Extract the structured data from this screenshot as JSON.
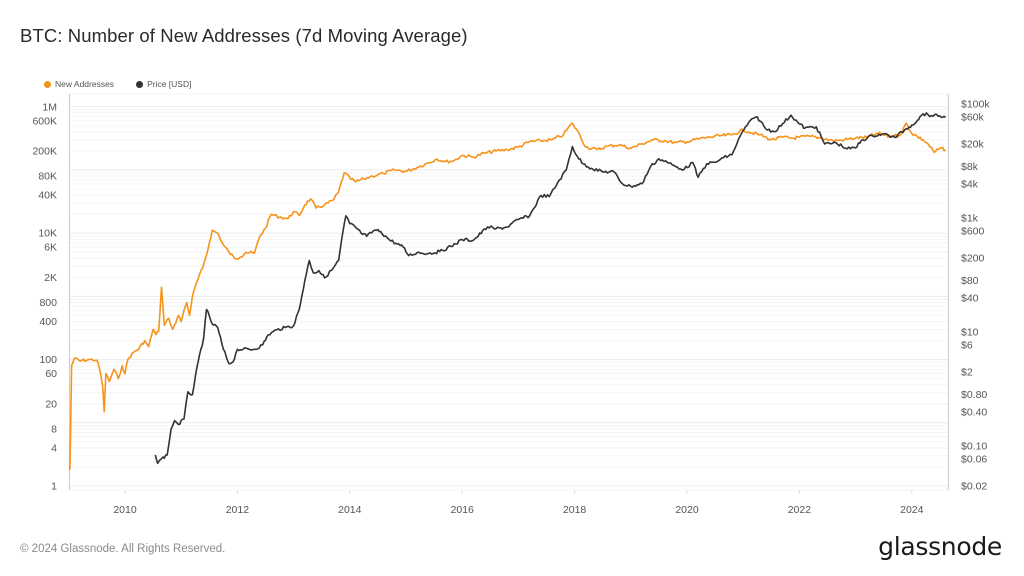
{
  "title": "BTC: Number of New Addresses (7d Moving Average)",
  "legend": [
    {
      "label": "New Addresses",
      "color": "#f7931a"
    },
    {
      "label": "Price [USD]",
      "color": "#333333"
    }
  ],
  "footer": {
    "copyright": "© 2024 Glassnode. All Rights Reserved.",
    "brand": "glassnode"
  },
  "chart_data": {
    "type": "line",
    "title": "BTC: Number of New Addresses (7d Moving Average)",
    "xlabel": "",
    "ylabel_left": "New Addresses",
    "ylabel_right": "Price [USD]",
    "x_range": [
      2009.0,
      2024.65
    ],
    "x_ticks": [
      "2010",
      "2012",
      "2014",
      "2016",
      "2018",
      "2020",
      "2022",
      "2024"
    ],
    "y_left_scale": "log",
    "y_left_range": [
      0.9,
      1600000
    ],
    "y_left_ticks": [
      {
        "value": 1000000,
        "label": "1M"
      },
      {
        "value": 600000,
        "label": "600K"
      },
      {
        "value": 200000,
        "label": "200K"
      },
      {
        "value": 80000,
        "label": "80K"
      },
      {
        "value": 40000,
        "label": "40K"
      },
      {
        "value": 10000,
        "label": "10K"
      },
      {
        "value": 6000,
        "label": "6K"
      },
      {
        "value": 2000,
        "label": "2K"
      },
      {
        "value": 800,
        "label": "800"
      },
      {
        "value": 400,
        "label": "400"
      },
      {
        "value": 100,
        "label": "100"
      },
      {
        "value": 60,
        "label": "60"
      },
      {
        "value": 20,
        "label": "20"
      },
      {
        "value": 8,
        "label": "8"
      },
      {
        "value": 4,
        "label": "4"
      },
      {
        "value": 1,
        "label": "1"
      }
    ],
    "y_right_scale": "log",
    "y_right_range": [
      0.018,
      130000
    ],
    "y_right_ticks": [
      {
        "value": 100000,
        "label": "$100k"
      },
      {
        "value": 60000,
        "label": "$60k"
      },
      {
        "value": 20000,
        "label": "$20k"
      },
      {
        "value": 8000,
        "label": "$8k"
      },
      {
        "value": 4000,
        "label": "$4k"
      },
      {
        "value": 1000,
        "label": "$1k"
      },
      {
        "value": 600,
        "label": "$600"
      },
      {
        "value": 200,
        "label": "$200"
      },
      {
        "value": 80,
        "label": "$80"
      },
      {
        "value": 40,
        "label": "$40"
      },
      {
        "value": 10,
        "label": "$10"
      },
      {
        "value": 6,
        "label": "$6"
      },
      {
        "value": 2,
        "label": "$2"
      },
      {
        "value": 0.8,
        "label": "$0.80"
      },
      {
        "value": 0.4,
        "label": "$0.40"
      },
      {
        "value": 0.1,
        "label": "$0.10"
      },
      {
        "value": 0.06,
        "label": "$0.06"
      },
      {
        "value": 0.02,
        "label": "$0.02"
      }
    ],
    "grid": true,
    "legend_position": "top-left",
    "series": [
      {
        "name": "New Addresses",
        "axis": "left",
        "color": "#f7931a",
        "points": [
          [
            2009.02,
            1.8
          ],
          [
            2009.05,
            80
          ],
          [
            2009.1,
            105
          ],
          [
            2009.2,
            95
          ],
          [
            2009.35,
            100
          ],
          [
            2009.5,
            98
          ],
          [
            2009.55,
            70
          ],
          [
            2009.6,
            40
          ],
          [
            2009.63,
            15
          ],
          [
            2009.66,
            60
          ],
          [
            2009.72,
            45
          ],
          [
            2009.8,
            70
          ],
          [
            2009.88,
            50
          ],
          [
            2009.95,
            80
          ],
          [
            2010.0,
            60
          ],
          [
            2010.05,
            100
          ],
          [
            2010.15,
            130
          ],
          [
            2010.25,
            150
          ],
          [
            2010.35,
            200
          ],
          [
            2010.42,
            160
          ],
          [
            2010.5,
            300
          ],
          [
            2010.55,
            250
          ],
          [
            2010.6,
            280
          ],
          [
            2010.65,
            1400
          ],
          [
            2010.7,
            350
          ],
          [
            2010.78,
            450
          ],
          [
            2010.85,
            300
          ],
          [
            2010.95,
            500
          ],
          [
            2011.0,
            400
          ],
          [
            2011.05,
            600
          ],
          [
            2011.1,
            800
          ],
          [
            2011.15,
            500
          ],
          [
            2011.2,
            1000
          ],
          [
            2011.28,
            1700
          ],
          [
            2011.38,
            2800
          ],
          [
            2011.45,
            4500
          ],
          [
            2011.55,
            11000
          ],
          [
            2011.65,
            10000
          ],
          [
            2011.75,
            6500
          ],
          [
            2011.85,
            5000
          ],
          [
            2011.95,
            4000
          ],
          [
            2012.05,
            4200
          ],
          [
            2012.15,
            5000
          ],
          [
            2012.3,
            4800
          ],
          [
            2012.4,
            9000
          ],
          [
            2012.5,
            12000
          ],
          [
            2012.6,
            20000
          ],
          [
            2012.75,
            18000
          ],
          [
            2012.9,
            17000
          ],
          [
            2013.0,
            22000
          ],
          [
            2013.1,
            19000
          ],
          [
            2013.2,
            28000
          ],
          [
            2013.3,
            35000
          ],
          [
            2013.4,
            25000
          ],
          [
            2013.55,
            28000
          ],
          [
            2013.7,
            33000
          ],
          [
            2013.8,
            45000
          ],
          [
            2013.9,
            90000
          ],
          [
            2014.0,
            75000
          ],
          [
            2014.1,
            65000
          ],
          [
            2014.25,
            72000
          ],
          [
            2014.4,
            80000
          ],
          [
            2014.6,
            88000
          ],
          [
            2014.8,
            100000
          ],
          [
            2015.0,
            95000
          ],
          [
            2015.2,
            110000
          ],
          [
            2015.4,
            130000
          ],
          [
            2015.55,
            150000
          ],
          [
            2015.7,
            135000
          ],
          [
            2015.85,
            140000
          ],
          [
            2016.0,
            170000
          ],
          [
            2016.2,
            160000
          ],
          [
            2016.4,
            185000
          ],
          [
            2016.6,
            200000
          ],
          [
            2016.8,
            210000
          ],
          [
            2017.0,
            230000
          ],
          [
            2017.2,
            280000
          ],
          [
            2017.4,
            290000
          ],
          [
            2017.6,
            300000
          ],
          [
            2017.8,
            360000
          ],
          [
            2017.95,
            550000
          ],
          [
            2018.05,
            420000
          ],
          [
            2018.2,
            230000
          ],
          [
            2018.4,
            210000
          ],
          [
            2018.6,
            240000
          ],
          [
            2018.8,
            250000
          ],
          [
            2019.0,
            220000
          ],
          [
            2019.2,
            260000
          ],
          [
            2019.4,
            300000
          ],
          [
            2019.6,
            290000
          ],
          [
            2019.8,
            270000
          ],
          [
            2020.0,
            280000
          ],
          [
            2020.2,
            310000
          ],
          [
            2020.4,
            330000
          ],
          [
            2020.6,
            350000
          ],
          [
            2020.8,
            360000
          ],
          [
            2021.0,
            430000
          ],
          [
            2021.1,
            400000
          ],
          [
            2021.3,
            360000
          ],
          [
            2021.5,
            300000
          ],
          [
            2021.7,
            330000
          ],
          [
            2021.9,
            320000
          ],
          [
            2022.0,
            330000
          ],
          [
            2022.2,
            340000
          ],
          [
            2022.4,
            320000
          ],
          [
            2022.6,
            290000
          ],
          [
            2022.8,
            300000
          ],
          [
            2023.0,
            320000
          ],
          [
            2023.2,
            330000
          ],
          [
            2023.4,
            380000
          ],
          [
            2023.6,
            340000
          ],
          [
            2023.8,
            360000
          ],
          [
            2023.9,
            550000
          ],
          [
            2024.0,
            380000
          ],
          [
            2024.1,
            340000
          ],
          [
            2024.2,
            300000
          ],
          [
            2024.3,
            250000
          ],
          [
            2024.4,
            190000
          ],
          [
            2024.5,
            220000
          ],
          [
            2024.6,
            210000
          ]
        ]
      },
      {
        "name": "Price [USD]",
        "axis": "right",
        "color": "#333333",
        "points": [
          [
            2010.54,
            0.07
          ],
          [
            2010.58,
            0.05
          ],
          [
            2010.65,
            0.06
          ],
          [
            2010.75,
            0.07
          ],
          [
            2010.82,
            0.2
          ],
          [
            2010.88,
            0.28
          ],
          [
            2010.95,
            0.24
          ],
          [
            2011.05,
            0.3
          ],
          [
            2011.12,
            0.9
          ],
          [
            2011.2,
            0.8
          ],
          [
            2011.3,
            3
          ],
          [
            2011.4,
            8
          ],
          [
            2011.45,
            25
          ],
          [
            2011.55,
            14
          ],
          [
            2011.65,
            12
          ],
          [
            2011.75,
            5
          ],
          [
            2011.85,
            2.8
          ],
          [
            2011.92,
            3
          ],
          [
            2012.0,
            5
          ],
          [
            2012.1,
            5
          ],
          [
            2012.3,
            5
          ],
          [
            2012.45,
            6
          ],
          [
            2012.55,
            9
          ],
          [
            2012.7,
            11
          ],
          [
            2012.85,
            12
          ],
          [
            2013.0,
            13
          ],
          [
            2013.1,
            25
          ],
          [
            2013.2,
            80
          ],
          [
            2013.28,
            180
          ],
          [
            2013.35,
            110
          ],
          [
            2013.45,
            120
          ],
          [
            2013.55,
            90
          ],
          [
            2013.7,
            130
          ],
          [
            2013.8,
            180
          ],
          [
            2013.88,
            600
          ],
          [
            2013.93,
            1100
          ],
          [
            2014.0,
            800
          ],
          [
            2014.1,
            700
          ],
          [
            2014.2,
            550
          ],
          [
            2014.3,
            480
          ],
          [
            2014.45,
            620
          ],
          [
            2014.55,
            580
          ],
          [
            2014.7,
            420
          ],
          [
            2014.85,
            350
          ],
          [
            2014.95,
            310
          ],
          [
            2015.05,
            220
          ],
          [
            2015.2,
            250
          ],
          [
            2015.4,
            240
          ],
          [
            2015.6,
            260
          ],
          [
            2015.8,
            320
          ],
          [
            2016.0,
            420
          ],
          [
            2016.2,
            410
          ],
          [
            2016.45,
            700
          ],
          [
            2016.6,
            650
          ],
          [
            2016.8,
            700
          ],
          [
            2017.0,
            950
          ],
          [
            2017.2,
            1100
          ],
          [
            2017.4,
            2500
          ],
          [
            2017.55,
            2400
          ],
          [
            2017.7,
            4200
          ],
          [
            2017.85,
            7000
          ],
          [
            2017.96,
            18000
          ],
          [
            2018.05,
            12000
          ],
          [
            2018.15,
            9000
          ],
          [
            2018.3,
            7500
          ],
          [
            2018.5,
            6500
          ],
          [
            2018.7,
            6500
          ],
          [
            2018.85,
            4000
          ],
          [
            2019.0,
            3600
          ],
          [
            2019.2,
            4000
          ],
          [
            2019.35,
            8000
          ],
          [
            2019.5,
            11000
          ],
          [
            2019.65,
            9500
          ],
          [
            2019.8,
            8000
          ],
          [
            2019.95,
            7200
          ],
          [
            2020.1,
            9500
          ],
          [
            2020.2,
            5200
          ],
          [
            2020.35,
            9000
          ],
          [
            2020.5,
            9500
          ],
          [
            2020.65,
            11500
          ],
          [
            2020.8,
            13000
          ],
          [
            2020.95,
            28000
          ],
          [
            2021.1,
            48000
          ],
          [
            2021.25,
            60000
          ],
          [
            2021.4,
            37000
          ],
          [
            2021.55,
            33000
          ],
          [
            2021.7,
            45000
          ],
          [
            2021.85,
            64000
          ],
          [
            2022.0,
            45000
          ],
          [
            2022.1,
            38000
          ],
          [
            2022.3,
            40000
          ],
          [
            2022.45,
            20000
          ],
          [
            2022.65,
            21000
          ],
          [
            2022.85,
            16500
          ],
          [
            2023.0,
            17000
          ],
          [
            2023.1,
            23000
          ],
          [
            2023.3,
            28000
          ],
          [
            2023.5,
            30000
          ],
          [
            2023.7,
            26000
          ],
          [
            2023.9,
            37000
          ],
          [
            2024.0,
            43000
          ],
          [
            2024.1,
            52000
          ],
          [
            2024.2,
            68000
          ],
          [
            2024.35,
            63000
          ],
          [
            2024.5,
            62000
          ],
          [
            2024.6,
            58000
          ]
        ]
      }
    ]
  }
}
